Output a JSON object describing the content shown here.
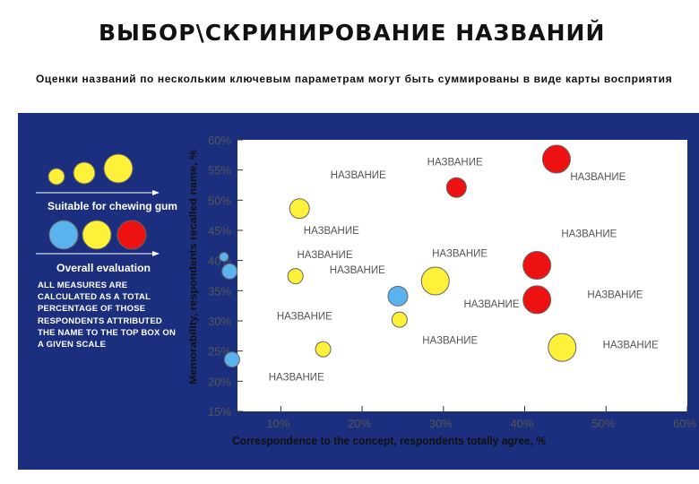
{
  "title": "ВЫБОР\\СКРИНИРОВАНИЕ НАЗВАНИЙ",
  "subtitle": "Оценки названий по нескольким ключевым параметрам могут быть суммированы в виде карты восприятия",
  "legend": {
    "size_caption": "Suitable for chewing gum",
    "color_caption": "Overall evaluation",
    "note": "ALL MEASURES ARE CALCULATED AS A TOTAL PERCENTAGE OF THOSE RESPONDENTS ATTRIBUTED THE NAME TO THE TOP BOX ON A GIVEN SCALE"
  },
  "colors": {
    "background": "#1c2f7e",
    "plot_area": "#ffffff",
    "red": "#ee1111",
    "yellow": "#fff03a",
    "blue": "#5ab3ee"
  },
  "chart_data": {
    "type": "scatter",
    "subtype": "bubble",
    "xlabel": "Correspondence to the concept, respondents totally agree, %",
    "ylabel": "Memorability, respondents recalled name, %",
    "xlim": [
      5,
      60
    ],
    "ylim": [
      15,
      60
    ],
    "xticks": [
      "10%",
      "20%",
      "30%",
      "40%",
      "50%",
      "60%"
    ],
    "xtick_values": [
      10,
      20,
      30,
      40,
      50,
      60
    ],
    "yticks": [
      "15%",
      "20%",
      "25%",
      "30%",
      "35%",
      "40%",
      "45%",
      "50%",
      "55%",
      "60%"
    ],
    "ytick_values": [
      15,
      20,
      25,
      30,
      35,
      40,
      45,
      50,
      55,
      60
    ],
    "size_meaning": "Suitable for chewing gum",
    "color_meaning": "Overall evaluation",
    "points": [
      {
        "x": 43.9,
        "y": 56.8,
        "size": "large",
        "color": "red"
      },
      {
        "x": 31.6,
        "y": 52.1,
        "size": "medium",
        "color": "red"
      },
      {
        "x": 12.3,
        "y": 48.6,
        "size": "medium",
        "color": "yellow"
      },
      {
        "x": 3.0,
        "y": 40.6,
        "size": "tiny",
        "color": "blue"
      },
      {
        "x": 3.7,
        "y": 38.2,
        "size": "small",
        "color": "blue"
      },
      {
        "x": 11.8,
        "y": 37.4,
        "size": "small",
        "color": "yellow"
      },
      {
        "x": 29.0,
        "y": 36.6,
        "size": "large",
        "color": "yellow"
      },
      {
        "x": 24.4,
        "y": 34.1,
        "size": "medium",
        "color": "blue"
      },
      {
        "x": 24.6,
        "y": 30.2,
        "size": "small",
        "color": "yellow"
      },
      {
        "x": 41.5,
        "y": 33.5,
        "size": "large",
        "color": "red"
      },
      {
        "x": 41.5,
        "y": 39.2,
        "size": "large",
        "color": "red"
      },
      {
        "x": 15.2,
        "y": 25.3,
        "size": "small",
        "color": "yellow"
      },
      {
        "x": 4.0,
        "y": 23.6,
        "size": "small",
        "color": "blue"
      },
      {
        "x": 44.6,
        "y": 25.6,
        "size": "large",
        "color": "yellow"
      }
    ],
    "labels": [
      {
        "text": "НАЗВАНИЕ",
        "x": 16.1,
        "y": 53.6
      },
      {
        "text": "НАЗВАНИЕ",
        "x": 28.0,
        "y": 55.8
      },
      {
        "text": "НАЗВАНИЕ",
        "x": 45.6,
        "y": 53.3
      },
      {
        "text": "НАЗВАНИЕ",
        "x": 12.8,
        "y": 44.4
      },
      {
        "text": "НАЗВАНИЕ",
        "x": 44.5,
        "y": 43.9
      },
      {
        "text": "НАЗВАНИЕ",
        "x": 12.0,
        "y": 40.4
      },
      {
        "text": "НАЗВАНИЕ",
        "x": 28.6,
        "y": 40.6
      },
      {
        "text": "НАЗВАНИЕ",
        "x": 16.0,
        "y": 37.9
      },
      {
        "text": "НАЗВАНИЕ",
        "x": 32.5,
        "y": 32.2
      },
      {
        "text": "НАЗВАНИЕ",
        "x": 47.7,
        "y": 33.8
      },
      {
        "text": "НАЗВАНИЕ",
        "x": 9.5,
        "y": 30.2
      },
      {
        "text": "НАЗВАНИЕ",
        "x": 27.4,
        "y": 26.2
      },
      {
        "text": "НАЗВАНИЕ",
        "x": 49.6,
        "y": 25.5
      },
      {
        "text": "НАЗВАНИЕ",
        "x": 8.5,
        "y": 20.1
      }
    ]
  }
}
